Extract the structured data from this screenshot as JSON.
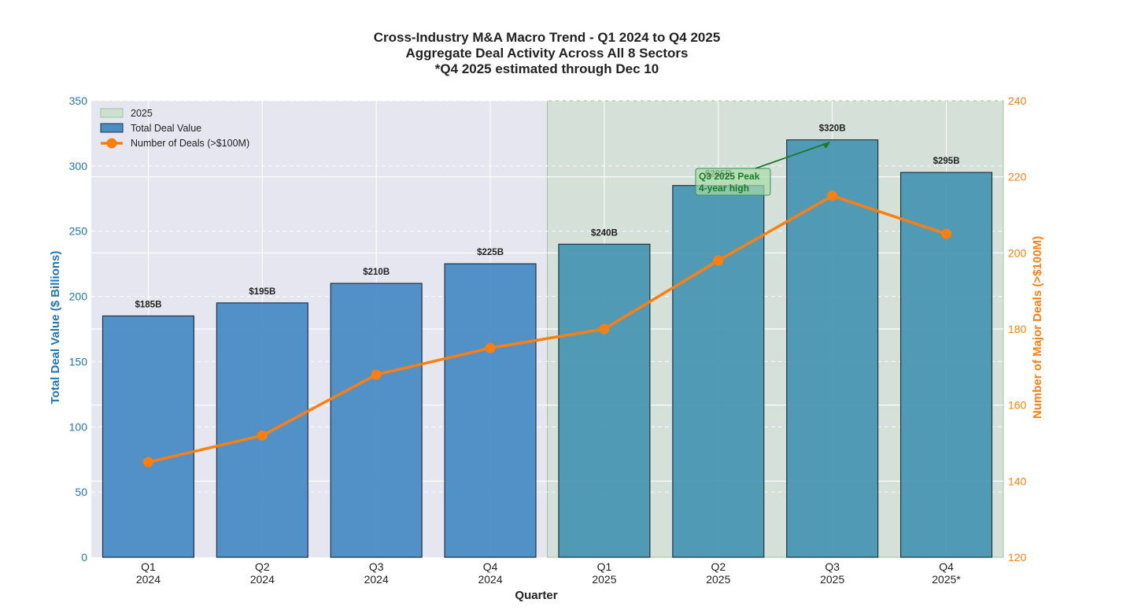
{
  "chart_data": {
    "type": "bar",
    "title_lines": [
      "Cross-Industry M&A Macro Trend - Q1 2024 to Q4 2025",
      "Aggregate Deal Activity Across All 8 Sectors",
      "*Q4 2025 estimated through Dec 10"
    ],
    "xlabel": "Quarter",
    "ylabel": "Total Deal Value ($ Billions)",
    "ylabel_right": "Number of Major Deals (>$100M)",
    "categories": [
      "Q1\n2024",
      "Q2\n2024",
      "Q3\n2024",
      "Q4\n2024",
      "Q1\n2025",
      "Q2\n2025",
      "Q3\n2025",
      "Q4\n2025*"
    ],
    "ylim": [
      0,
      350
    ],
    "yticks": [
      0,
      50,
      100,
      150,
      200,
      250,
      300,
      350
    ],
    "ylim_right": [
      120,
      240
    ],
    "yticks_right": [
      120,
      140,
      160,
      180,
      200,
      220,
      240
    ],
    "series": [
      {
        "name": "Total Deal Value",
        "type": "bar",
        "axis": "left",
        "values": [
          185,
          195,
          210,
          225,
          240,
          285,
          320,
          295
        ],
        "labels": [
          "$185B",
          "$195B",
          "$210B",
          "$225B",
          "$240B",
          "$285B",
          "$320B",
          "$295B"
        ]
      },
      {
        "name": "Number of Deals (>$100M)",
        "type": "line",
        "axis": "right",
        "values": [
          145,
          152,
          168,
          175,
          180,
          198,
          215,
          205
        ]
      }
    ],
    "highlight": {
      "label": "2025",
      "start_index": 4,
      "end_index": 7
    },
    "annotation": {
      "lines": [
        "Q3 2025 Peak",
        "4-year high"
      ],
      "target_index": 6,
      "target_value": 320
    },
    "legend": {
      "position": "top-left",
      "entries": [
        "2025",
        "Total Deal Value",
        "Number of Deals (>$100M)"
      ]
    },
    "colors": {
      "bar": "#4a8cc4",
      "bar_edge": "#1f3340",
      "line": "#ff7f0e",
      "left_axis": "#1f77b4",
      "right_axis": "#ff7f0e",
      "highlight": "#c8dcc8",
      "annotation": "#1a7a2a",
      "plot_bg": "#e6e6f0"
    }
  }
}
